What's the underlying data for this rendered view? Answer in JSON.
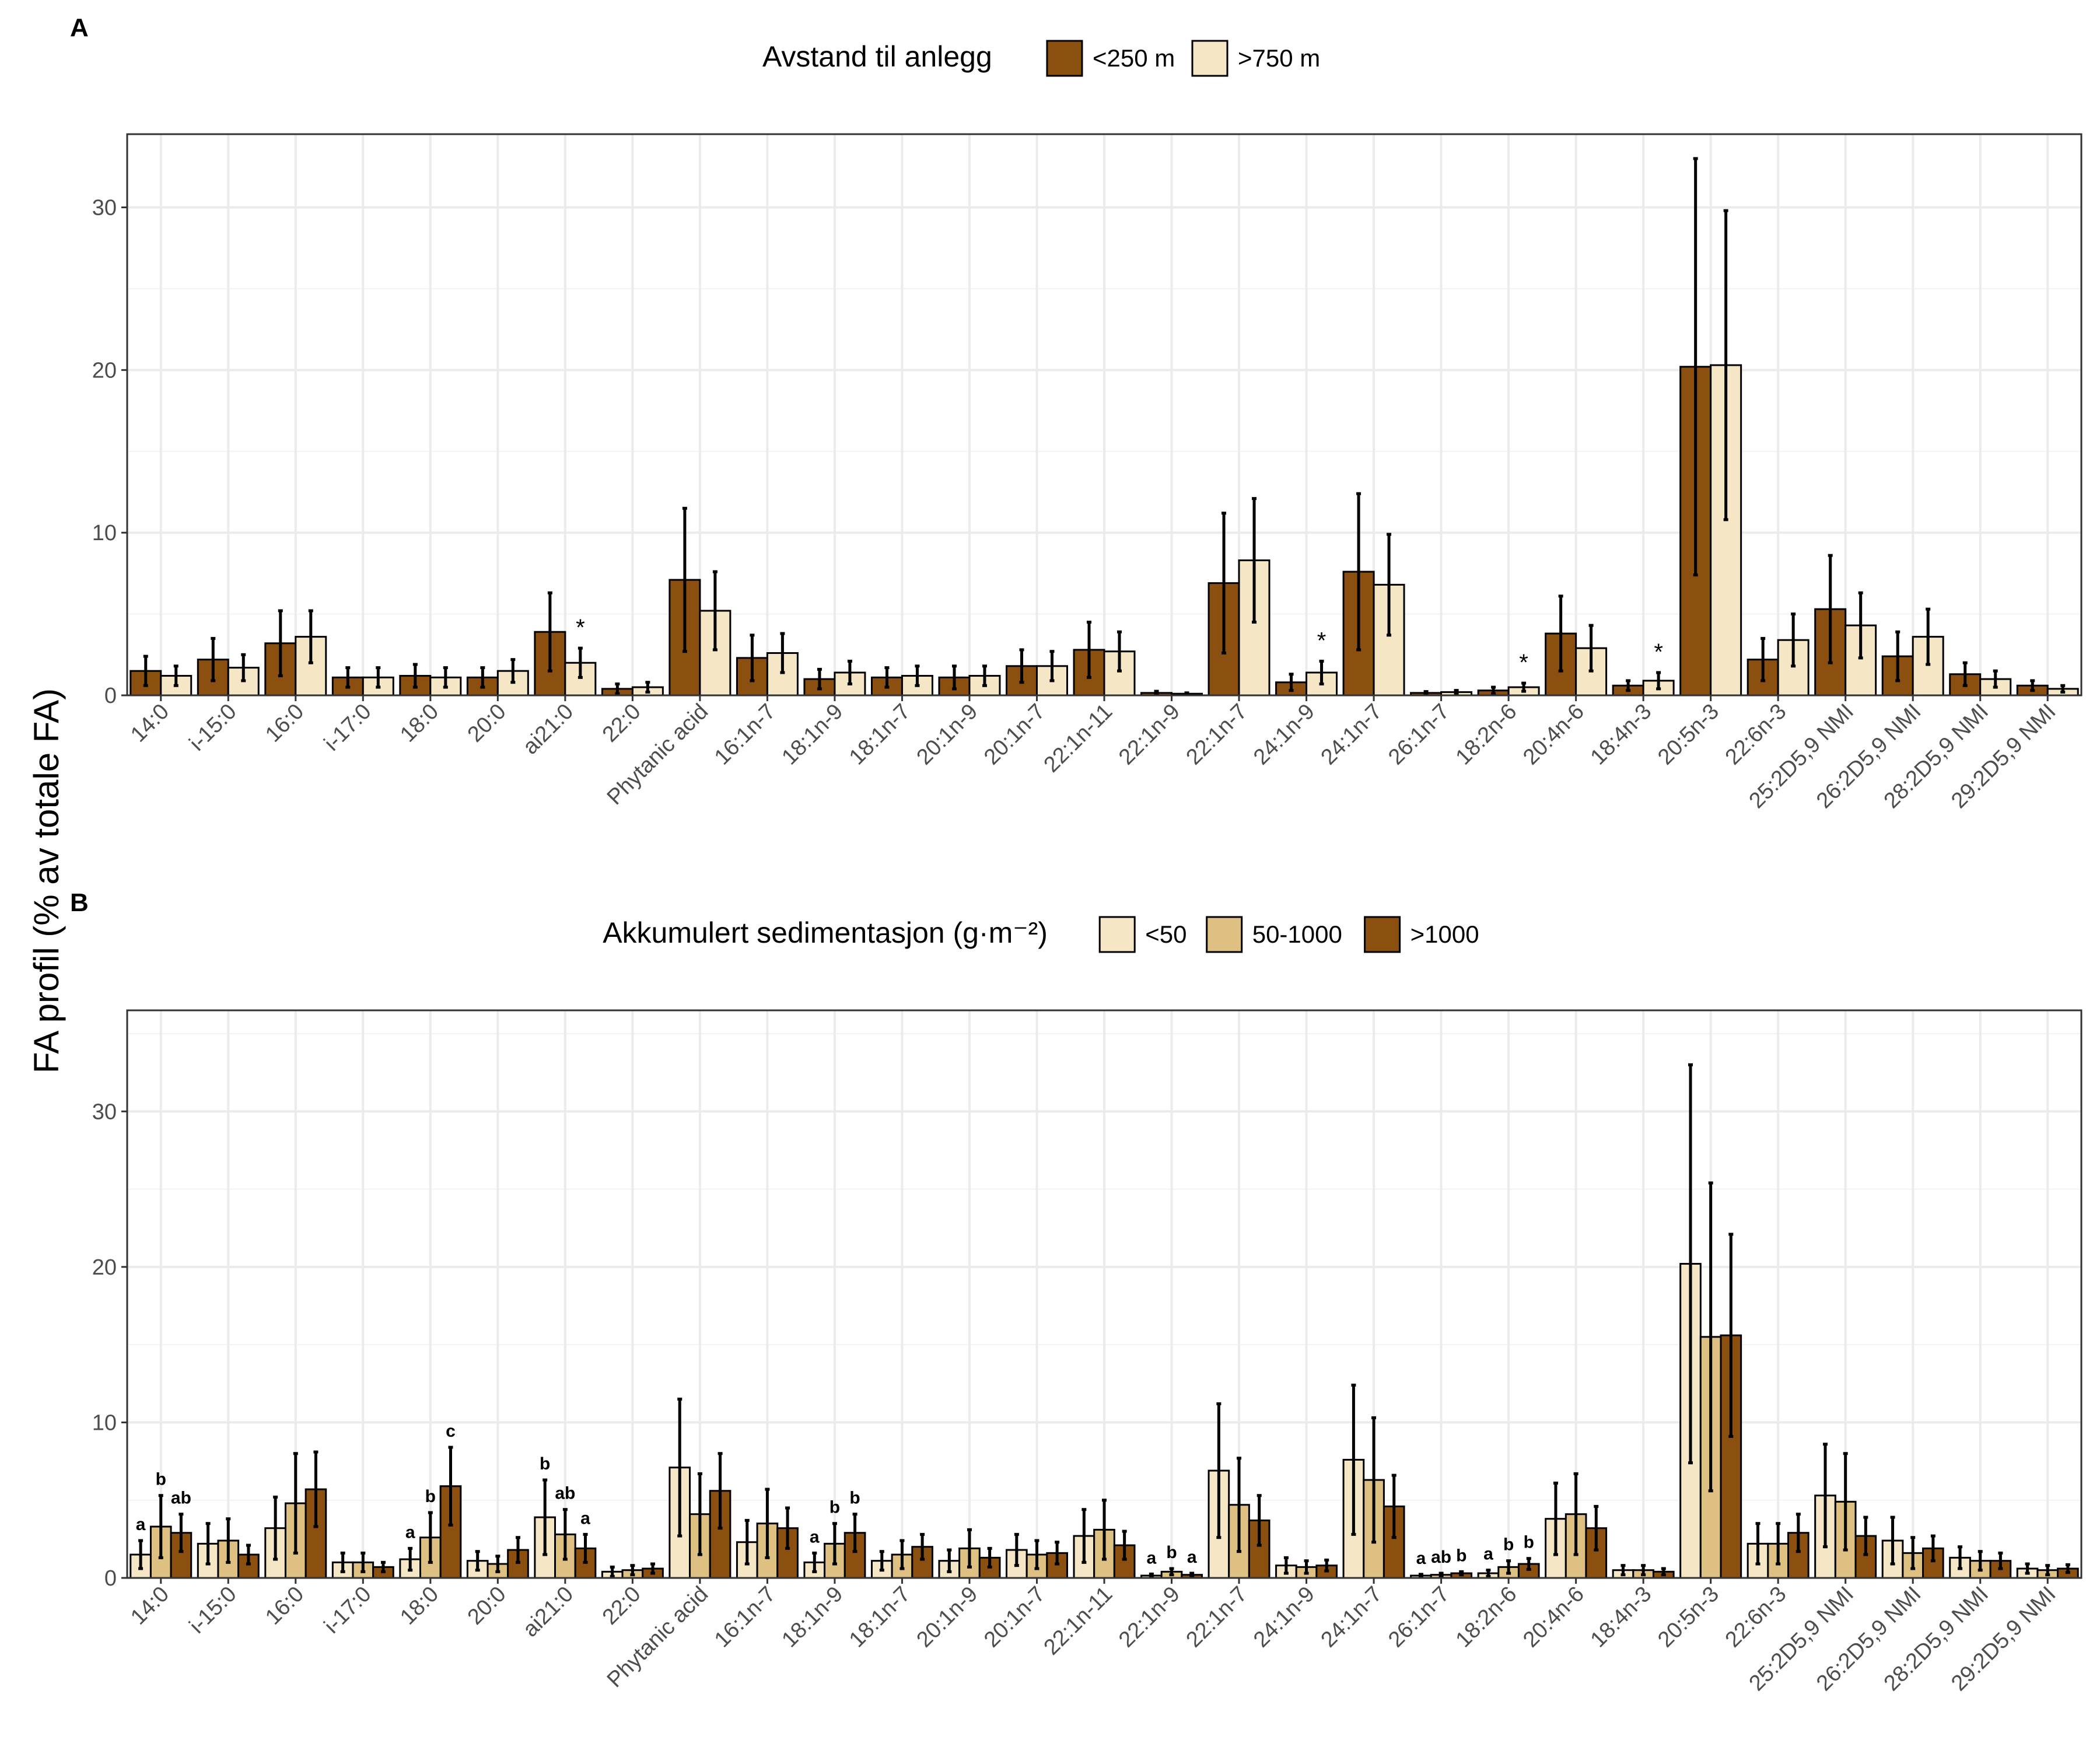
{
  "y_label": "FA profil (% av totale FA)",
  "colors": {
    "dark": "#8B4F0F",
    "mid": "#DEC083",
    "light": "#F5E7C6",
    "grid": "#EBEBEB",
    "axis": "#333333"
  },
  "chart_data": [
    {
      "type": "bar",
      "panel_label": "A",
      "legend_title": "Avstand til anlegg",
      "legend_position": "top",
      "grid": true,
      "ylim": [
        0,
        34.5
      ],
      "yticks": [
        0,
        10,
        20,
        30
      ],
      "categories": [
        "14:0",
        "i-15:0",
        "16:0",
        "i-17:0",
        "18:0",
        "20:0",
        "ai21:0",
        "22:0",
        "Phytanic acid",
        "16:1n-7",
        "18:1n-9",
        "18:1n-7",
        "20:1n-9",
        "20:1n-7",
        "22:1n-11",
        "22:1n-9",
        "22:1n-7",
        "24:1n-9",
        "24:1n-7",
        "26:1n-7",
        "18:2n-6",
        "20:4n-6",
        "18:4n-3",
        "20:5n-3",
        "22:6n-3",
        "25:2D5,9 NMI",
        "26:2D5,9 NMI",
        "28:2D5,9 NMI",
        "29:2D5,9 NMI"
      ],
      "series": [
        {
          "name": "<250 m",
          "color": "#8B4F0F",
          "values": [
            1.5,
            2.2,
            3.2,
            1.1,
            1.2,
            1.1,
            3.9,
            0.4,
            7.1,
            2.3,
            1.0,
            1.1,
            1.1,
            1.8,
            2.8,
            0.15,
            6.9,
            0.8,
            7.6,
            0.15,
            0.3,
            3.8,
            0.6,
            20.2,
            2.2,
            5.3,
            2.4,
            1.3,
            0.6
          ],
          "errors": [
            0.9,
            1.3,
            2.0,
            0.6,
            0.7,
            0.6,
            2.4,
            0.3,
            4.4,
            1.4,
            0.6,
            0.6,
            0.7,
            1.0,
            1.7,
            0.1,
            4.3,
            0.5,
            4.8,
            0.08,
            0.2,
            2.3,
            0.3,
            12.8,
            1.3,
            3.3,
            1.5,
            0.7,
            0.3
          ]
        },
        {
          "name": ">750 m",
          "color": "#F5E7C6",
          "values": [
            1.2,
            1.7,
            3.6,
            1.1,
            1.1,
            1.5,
            2.0,
            0.5,
            5.2,
            2.6,
            1.4,
            1.2,
            1.2,
            1.8,
            2.7,
            0.1,
            8.3,
            1.4,
            6.8,
            0.2,
            0.5,
            2.9,
            0.9,
            20.3,
            3.4,
            4.3,
            3.6,
            1.0,
            0.4
          ],
          "errors": [
            0.6,
            0.8,
            1.6,
            0.6,
            0.6,
            0.7,
            0.9,
            0.3,
            2.4,
            1.2,
            0.7,
            0.6,
            0.6,
            0.9,
            1.2,
            0.05,
            3.8,
            0.7,
            3.1,
            0.1,
            0.25,
            1.4,
            0.5,
            9.5,
            1.6,
            2.0,
            1.7,
            0.5,
            0.2
          ]
        }
      ],
      "annotations": [
        {
          "category": "ai21:0",
          "text": "*"
        },
        {
          "category": "24:1n-9",
          "text": "*"
        },
        {
          "category": "18:2n-6",
          "text": "*"
        },
        {
          "category": "18:4n-3",
          "text": "*"
        }
      ]
    },
    {
      "type": "bar",
      "panel_label": "B",
      "legend_title": "Akkumulert sedimentasjon (g·m⁻²)",
      "legend_position": "top",
      "grid": true,
      "ylim": [
        0,
        36.5
      ],
      "yticks": [
        0,
        10,
        20,
        30
      ],
      "categories": [
        "14:0",
        "i-15:0",
        "16:0",
        "i-17:0",
        "18:0",
        "20:0",
        "ai21:0",
        "22:0",
        "Phytanic acid",
        "16:1n-7",
        "18:1n-9",
        "18:1n-7",
        "20:1n-9",
        "20:1n-7",
        "22:1n-11",
        "22:1n-9",
        "22:1n-7",
        "24:1n-9",
        "24:1n-7",
        "26:1n-7",
        "18:2n-6",
        "20:4n-6",
        "18:4n-3",
        "20:5n-3",
        "22:6n-3",
        "25:2D5,9 NMI",
        "26:2D5,9 NMI",
        "28:2D5,9 NMI",
        "29:2D5,9 NMI"
      ],
      "series": [
        {
          "name": "<50",
          "color": "#F5E7C6",
          "values": [
            1.5,
            2.2,
            3.2,
            1.0,
            1.2,
            1.1,
            3.9,
            0.4,
            7.1,
            2.3,
            1.0,
            1.1,
            1.1,
            1.8,
            2.7,
            0.15,
            6.9,
            0.8,
            7.6,
            0.15,
            0.3,
            3.8,
            0.5,
            20.2,
            2.2,
            5.3,
            2.4,
            1.3,
            0.6
          ],
          "errors": [
            0.9,
            1.3,
            2.0,
            0.6,
            0.7,
            0.6,
            2.4,
            0.3,
            4.4,
            1.4,
            0.6,
            0.6,
            0.7,
            1.0,
            1.7,
            0.1,
            4.3,
            0.5,
            4.8,
            0.08,
            0.2,
            2.3,
            0.3,
            12.8,
            1.3,
            3.3,
            1.5,
            0.7,
            0.3
          ]
        },
        {
          "name": "50-1000",
          "color": "#DEC083",
          "values": [
            3.3,
            2.4,
            4.8,
            1.0,
            2.6,
            0.9,
            2.8,
            0.5,
            4.1,
            3.5,
            2.2,
            1.5,
            1.9,
            1.5,
            3.1,
            0.4,
            4.7,
            0.7,
            6.3,
            0.2,
            0.7,
            4.1,
            0.5,
            15.5,
            2.2,
            4.9,
            1.6,
            1.1,
            0.5
          ],
          "errors": [
            2.0,
            1.4,
            3.2,
            0.6,
            1.6,
            0.5,
            1.6,
            0.3,
            2.6,
            2.2,
            1.3,
            0.9,
            1.2,
            0.9,
            1.9,
            0.2,
            3.0,
            0.4,
            4.0,
            0.1,
            0.4,
            2.6,
            0.3,
            9.9,
            1.3,
            3.1,
            1.0,
            0.6,
            0.3
          ]
        },
        {
          "name": ">1000",
          "color": "#8B4F0F",
          "values": [
            2.9,
            1.5,
            5.7,
            0.7,
            5.9,
            1.8,
            1.9,
            0.6,
            5.6,
            3.2,
            2.9,
            2.0,
            1.3,
            1.6,
            2.1,
            0.2,
            3.7,
            0.8,
            4.6,
            0.3,
            0.9,
            3.2,
            0.4,
            15.6,
            2.9,
            2.7,
            1.9,
            1.1,
            0.6
          ],
          "errors": [
            1.2,
            0.6,
            2.4,
            0.3,
            2.5,
            0.8,
            0.9,
            0.3,
            2.4,
            1.3,
            1.2,
            0.8,
            0.6,
            0.7,
            0.9,
            0.1,
            1.6,
            0.35,
            2.0,
            0.1,
            0.35,
            1.4,
            0.2,
            6.5,
            1.2,
            1.2,
            0.8,
            0.5,
            0.25
          ]
        }
      ],
      "annotations": [
        {
          "category": "14:0",
          "labels": [
            "a",
            "b",
            "ab"
          ]
        },
        {
          "category": "18:0",
          "labels": [
            "a",
            "b",
            "c"
          ]
        },
        {
          "category": "ai21:0",
          "labels": [
            "b",
            "ab",
            "a"
          ]
        },
        {
          "category": "18:1n-9",
          "labels": [
            "a",
            "b",
            "b"
          ]
        },
        {
          "category": "22:1n-9",
          "labels": [
            "a",
            "b",
            "a"
          ]
        },
        {
          "category": "26:1n-7",
          "labels": [
            "a",
            "ab",
            "b"
          ]
        },
        {
          "category": "18:2n-6",
          "labels": [
            "a",
            "b",
            "b"
          ]
        }
      ]
    }
  ]
}
